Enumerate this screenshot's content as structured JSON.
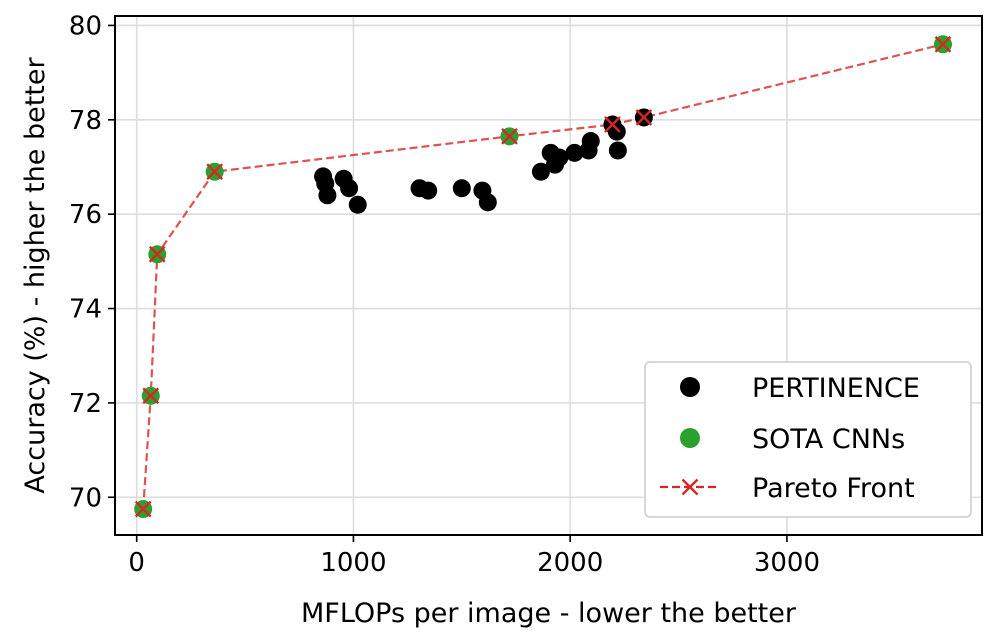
{
  "chart_data": {
    "type": "scatter",
    "xlabel": "MFLOPs per image - lower the better",
    "ylabel": "Accuracy (%) - higher the better",
    "xlim": [
      -100,
      3900
    ],
    "ylim": [
      69.2,
      80.2
    ],
    "x_ticks": [
      0,
      1000,
      2000,
      3000
    ],
    "y_ticks": [
      70,
      72,
      74,
      76,
      78,
      80
    ],
    "grid": true,
    "legend_position": "bottom-right",
    "series": [
      {
        "name": "PERTINENCE",
        "marker": "circle",
        "color": "#000000",
        "points": [
          {
            "x": 860,
            "y": 76.8
          },
          {
            "x": 870,
            "y": 76.65
          },
          {
            "x": 880,
            "y": 76.4
          },
          {
            "x": 955,
            "y": 76.75
          },
          {
            "x": 980,
            "y": 76.55
          },
          {
            "x": 1020,
            "y": 76.2
          },
          {
            "x": 1305,
            "y": 76.55
          },
          {
            "x": 1345,
            "y": 76.5
          },
          {
            "x": 1500,
            "y": 76.55
          },
          {
            "x": 1595,
            "y": 76.5
          },
          {
            "x": 1620,
            "y": 76.25
          },
          {
            "x": 1865,
            "y": 76.9
          },
          {
            "x": 1910,
            "y": 77.3
          },
          {
            "x": 1930,
            "y": 77.05
          },
          {
            "x": 1950,
            "y": 77.2
          },
          {
            "x": 2020,
            "y": 77.3
          },
          {
            "x": 2085,
            "y": 77.35
          },
          {
            "x": 2095,
            "y": 77.55
          },
          {
            "x": 2195,
            "y": 77.9
          },
          {
            "x": 2215,
            "y": 77.75
          },
          {
            "x": 2220,
            "y": 77.35
          },
          {
            "x": 2340,
            "y": 78.05
          }
        ]
      },
      {
        "name": "SOTA CNNs",
        "marker": "circle",
        "color": "#2ca02c",
        "points": [
          {
            "x": 30,
            "y": 69.75
          },
          {
            "x": 65,
            "y": 72.15
          },
          {
            "x": 95,
            "y": 75.15
          },
          {
            "x": 360,
            "y": 76.9
          },
          {
            "x": 1720,
            "y": 77.65
          },
          {
            "x": 3720,
            "y": 79.6
          }
        ]
      },
      {
        "name": "Pareto Front",
        "marker": "x",
        "line": "dashed",
        "color": "#d62728",
        "points": [
          {
            "x": 30,
            "y": 69.75
          },
          {
            "x": 65,
            "y": 72.15
          },
          {
            "x": 95,
            "y": 75.15
          },
          {
            "x": 360,
            "y": 76.9
          },
          {
            "x": 1720,
            "y": 77.65
          },
          {
            "x": 2195,
            "y": 77.9
          },
          {
            "x": 2340,
            "y": 78.05
          },
          {
            "x": 3720,
            "y": 79.6
          }
        ]
      }
    ]
  }
}
